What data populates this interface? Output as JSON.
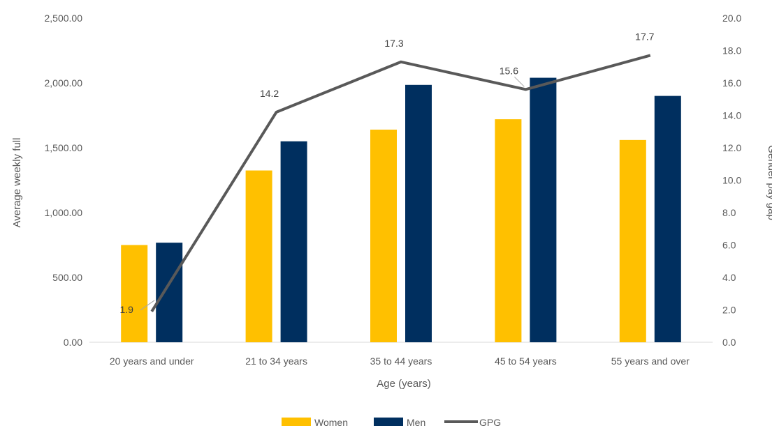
{
  "chart_data": {
    "type": "bar",
    "categories": [
      "20 years and under",
      "21 to 34 years",
      "35 to 44 years",
      "45 to 54 years",
      "55 years and over"
    ],
    "series": [
      {
        "name": "Women",
        "type": "bar",
        "axis": "left",
        "color": "#FFC000",
        "values": [
          750,
          1325,
          1640,
          1720,
          1560
        ]
      },
      {
        "name": "Men",
        "type": "bar",
        "axis": "left",
        "color": "#002F5F",
        "values": [
          768,
          1550,
          1985,
          2040,
          1900
        ]
      },
      {
        "name": "GPG",
        "type": "line",
        "axis": "right",
        "color": "#595959",
        "values": [
          1.9,
          14.2,
          17.3,
          15.6,
          17.7
        ]
      }
    ],
    "data_labels": [
      "1.9",
      "14.2",
      "17.3",
      "15.6",
      "17.7"
    ],
    "xlabel": "Age (years)",
    "ylabel": "Average weekly full",
    "y2label": "Gender pay gap",
    "ylim": [
      0,
      2500
    ],
    "y2lim": [
      0,
      20
    ],
    "yticks": [
      "0.00",
      "500.00",
      "1,000.00",
      "1,500.00",
      "2,000.00",
      "2,500.00"
    ],
    "y2ticks": [
      "0.0",
      "2.0",
      "4.0",
      "6.0",
      "8.0",
      "10.0",
      "12.0",
      "14.0",
      "16.0",
      "18.0",
      "20.0"
    ],
    "grid": false,
    "legend_position": "bottom"
  }
}
